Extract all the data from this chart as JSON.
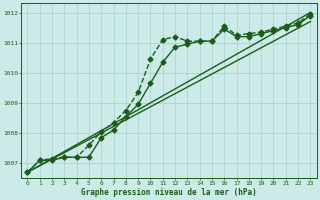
{
  "background_color": "#cceae7",
  "grid_color": "#aad4d0",
  "line_color": "#1a5c1a",
  "text_color": "#1a5c1a",
  "xlabel": "Graphe pression niveau de la mer (hPa)",
  "xlim": [
    -0.5,
    23.5
  ],
  "ylim": [
    1006.5,
    1012.3
  ],
  "yticks": [
    1007,
    1008,
    1009,
    1010,
    1011,
    1012
  ],
  "xticks": [
    0,
    1,
    2,
    3,
    4,
    5,
    6,
    7,
    8,
    9,
    10,
    11,
    12,
    13,
    14,
    15,
    16,
    17,
    18,
    19,
    20,
    21,
    22,
    23
  ],
  "series": [
    {
      "x": [
        0,
        1,
        2,
        3,
        4,
        5,
        6,
        7,
        8,
        9,
        10,
        11,
        12,
        13,
        14,
        15,
        16,
        17,
        18,
        19,
        20,
        21,
        22,
        23
      ],
      "y": [
        1006.7,
        1007.1,
        1007.15,
        1007.2,
        1007.2,
        1007.6,
        1008.05,
        1008.35,
        1008.75,
        1009.35,
        1010.45,
        1011.1,
        1011.2,
        1011.05,
        1011.05,
        1011.05,
        1011.55,
        1011.25,
        1011.3,
        1011.35,
        1011.45,
        1011.55,
        1011.65,
        1011.95
      ],
      "marker": "D",
      "linewidth": 1.0,
      "markersize": 2.5,
      "linestyle": "--"
    },
    {
      "x": [
        0,
        23
      ],
      "y": [
        1006.7,
        1012.0
      ],
      "marker": null,
      "linewidth": 1.0,
      "markersize": 0,
      "linestyle": "-"
    },
    {
      "x": [
        0,
        23
      ],
      "y": [
        1006.7,
        1011.7
      ],
      "marker": null,
      "linewidth": 1.0,
      "markersize": 0,
      "linestyle": "-"
    },
    {
      "x": [
        0,
        1,
        2,
        3,
        4,
        5,
        6,
        7,
        8,
        9,
        10,
        11,
        12,
        13,
        14,
        15,
        16,
        17,
        18,
        19,
        20,
        21,
        22,
        23
      ],
      "y": [
        1006.7,
        1007.1,
        1007.1,
        1007.2,
        1007.2,
        1007.2,
        1007.85,
        1008.1,
        1008.55,
        1008.95,
        1009.65,
        1010.35,
        1010.85,
        1010.95,
        1011.05,
        1011.05,
        1011.45,
        1011.2,
        1011.2,
        1011.3,
        1011.4,
        1011.5,
        1011.6,
        1011.9
      ],
      "marker": "D",
      "linewidth": 1.0,
      "markersize": 2.5,
      "linestyle": "-"
    }
  ]
}
